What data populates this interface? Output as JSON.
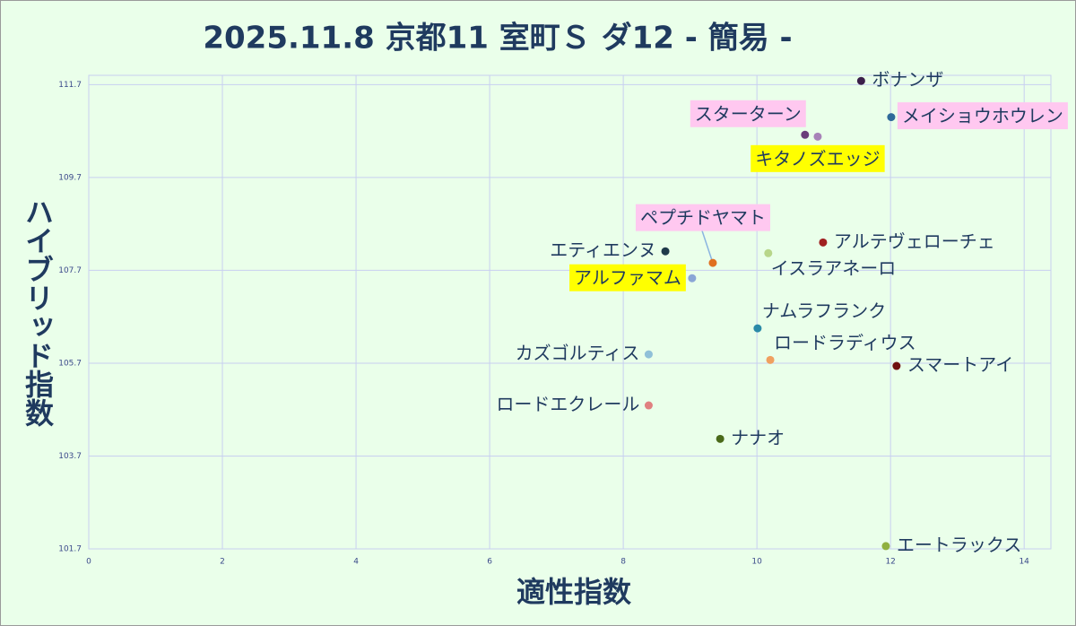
{
  "chart_data": {
    "type": "scatter",
    "title": "2025.11.8 京都11 室町Ｓ ダ12 - 簡易 -",
    "x_label": "適性指数",
    "y_label": "ハイブリッド指数",
    "xlim": [
      0,
      14.4
    ],
    "ylim": [
      101.7,
      111.9
    ],
    "xticks": [
      0,
      2,
      4,
      6,
      8,
      10,
      12,
      14
    ],
    "yticks": [
      101.7,
      103.7,
      105.7,
      107.7,
      109.7,
      111.7
    ],
    "grid": true,
    "points": [
      {
        "name": "ボナンザ",
        "x": 11.56,
        "y": 111.78,
        "color": "#3b1f4a",
        "highlight": null
      },
      {
        "name": "メイショウホウレン",
        "x": 12.01,
        "y": 111.0,
        "color": "#2f6a9a",
        "highlight": "#ffc8f0"
      },
      {
        "name": "スターターン",
        "x": 10.72,
        "y": 110.62,
        "color": "#6b3d7a",
        "highlight": "#ffc8f0"
      },
      {
        "name": "キタノズエッジ",
        "x": 10.91,
        "y": 110.58,
        "color": "#a882b8",
        "highlight": "#ffff00"
      },
      {
        "name": "ペプチドヤマト",
        "x": 9.34,
        "y": 107.86,
        "color": "#e07020",
        "highlight": "#ffc8f0"
      },
      {
        "name": "エティエンヌ",
        "x": 8.63,
        "y": 108.11,
        "color": "#1f3a4a",
        "highlight": null
      },
      {
        "name": "アルファマム",
        "x": 9.03,
        "y": 107.53,
        "color": "#8aa6d6",
        "highlight": "#ffff00"
      },
      {
        "name": "アルテヴェローチェ",
        "x": 10.99,
        "y": 108.3,
        "color": "#a02020",
        "highlight": null
      },
      {
        "name": "イスラアネーロ",
        "x": 10.17,
        "y": 108.07,
        "color": "#b8d68a",
        "highlight": null
      },
      {
        "name": "ナムラフランク",
        "x": 10.01,
        "y": 106.45,
        "color": "#2a8aa8",
        "highlight": null
      },
      {
        "name": "ロードラディウス",
        "x": 10.2,
        "y": 105.77,
        "color": "#f0a060",
        "highlight": null
      },
      {
        "name": "スマートアイ",
        "x": 12.09,
        "y": 105.64,
        "color": "#701010",
        "highlight": null
      },
      {
        "name": "カズゴルティス",
        "x": 8.38,
        "y": 105.89,
        "color": "#90c0d8",
        "highlight": null
      },
      {
        "name": "ロードエクレール",
        "x": 8.38,
        "y": 104.79,
        "color": "#e08080",
        "highlight": null
      },
      {
        "name": "ナナオ",
        "x": 9.45,
        "y": 104.07,
        "color": "#4a6a1a",
        "highlight": null
      },
      {
        "name": "エートラックス",
        "x": 11.93,
        "y": 101.76,
        "color": "#90b040",
        "highlight": null
      }
    ]
  }
}
